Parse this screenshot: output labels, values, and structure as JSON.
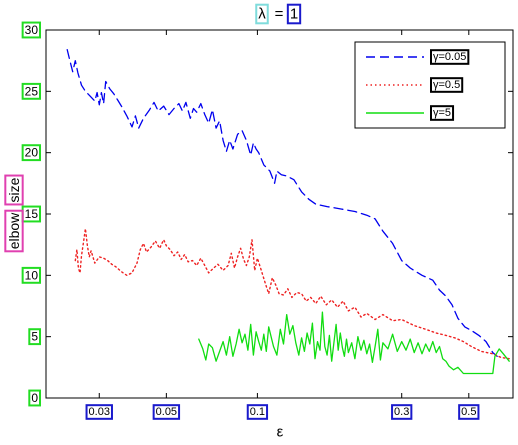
{
  "chart_data": {
    "type": "line",
    "title": "λ = 1",
    "title_parts": [
      "λ",
      "=",
      "1"
    ],
    "xlabel": "ε",
    "ylabel": "elbow size",
    "ylabel_parts": [
      "elbow",
      "size"
    ],
    "x_scale": "log",
    "xlim": [
      0.02,
      0.7
    ],
    "ylim": [
      0,
      30
    ],
    "x_ticks": [
      {
        "value": 0.03,
        "label": "0.03"
      },
      {
        "value": 0.05,
        "label": "0.05"
      },
      {
        "value": 0.1,
        "label": "0.1"
      },
      {
        "value": 0.3,
        "label": "0.3"
      },
      {
        "value": 0.5,
        "label": "0.5"
      }
    ],
    "y_ticks": [
      {
        "value": 0,
        "label": "0"
      },
      {
        "value": 5,
        "label": "5"
      },
      {
        "value": 10,
        "label": "10"
      },
      {
        "value": 15,
        "label": "15"
      },
      {
        "value": 20,
        "label": "20"
      },
      {
        "value": 25,
        "label": "25"
      },
      {
        "value": 30,
        "label": "30"
      }
    ],
    "grid": false,
    "legend_position": "top-right",
    "label_box_colors": {
      "title_box": "#7fdcdc",
      "tick_box": "#1a1acc",
      "ylabel_box": "#e040b0",
      "ytick_box": "#22dd22",
      "legend_label_box": "#000000"
    },
    "series": [
      {
        "name": "γ=0.05",
        "color": "#0000ee",
        "dash": "dashed",
        "points": [
          [
            0.0235,
            28.4
          ],
          [
            0.024,
            27.5
          ],
          [
            0.0245,
            26.6
          ],
          [
            0.025,
            27.5
          ],
          [
            0.0255,
            26.5
          ],
          [
            0.0262,
            25.5
          ],
          [
            0.027,
            25.0
          ],
          [
            0.028,
            24.6
          ],
          [
            0.029,
            24.2
          ],
          [
            0.0295,
            24.9
          ],
          [
            0.03,
            23.9
          ],
          [
            0.0305,
            24.9
          ],
          [
            0.031,
            24.0
          ],
          [
            0.0315,
            25.8
          ],
          [
            0.0325,
            25.2
          ],
          [
            0.0335,
            24.8
          ],
          [
            0.0345,
            24.3
          ],
          [
            0.0355,
            23.8
          ],
          [
            0.037,
            23.0
          ],
          [
            0.0385,
            22.1
          ],
          [
            0.0395,
            23.0
          ],
          [
            0.0405,
            22.0
          ],
          [
            0.042,
            22.8
          ],
          [
            0.044,
            23.5
          ],
          [
            0.0455,
            24.1
          ],
          [
            0.047,
            23.4
          ],
          [
            0.049,
            23.8
          ],
          [
            0.051,
            23.1
          ],
          [
            0.053,
            23.6
          ],
          [
            0.055,
            24.0
          ],
          [
            0.0565,
            23.4
          ],
          [
            0.058,
            24.1
          ],
          [
            0.06,
            22.8
          ],
          [
            0.0615,
            23.6
          ],
          [
            0.063,
            23.3
          ],
          [
            0.065,
            24.0
          ],
          [
            0.067,
            23.1
          ],
          [
            0.069,
            22.4
          ],
          [
            0.071,
            23.5
          ],
          [
            0.073,
            22.0
          ],
          [
            0.075,
            22.6
          ],
          [
            0.077,
            21.0
          ],
          [
            0.079,
            20.1
          ],
          [
            0.081,
            21.0
          ],
          [
            0.083,
            20.3
          ],
          [
            0.086,
            21.5
          ],
          [
            0.089,
            21.8
          ],
          [
            0.092,
            21.0
          ],
          [
            0.095,
            19.8
          ],
          [
            0.097,
            20.8
          ],
          [
            0.099,
            20.3
          ],
          [
            0.101,
            20.0
          ],
          [
            0.105,
            19.0
          ],
          [
            0.11,
            18.5
          ],
          [
            0.114,
            17.5
          ],
          [
            0.116,
            18.5
          ],
          [
            0.12,
            18.2
          ],
          [
            0.125,
            18.1
          ],
          [
            0.132,
            17.8
          ],
          [
            0.14,
            16.8
          ],
          [
            0.148,
            16.2
          ],
          [
            0.156,
            15.8
          ],
          [
            0.17,
            15.6
          ],
          [
            0.19,
            15.4
          ],
          [
            0.21,
            15.2
          ],
          [
            0.23,
            14.9
          ],
          [
            0.245,
            14.6
          ],
          [
            0.26,
            13.6
          ],
          [
            0.28,
            12.6
          ],
          [
            0.3,
            11.2
          ],
          [
            0.32,
            10.6
          ],
          [
            0.35,
            10.0
          ],
          [
            0.38,
            9.6
          ],
          [
            0.4,
            8.8
          ],
          [
            0.42,
            8.3
          ],
          [
            0.44,
            7.6
          ],
          [
            0.46,
            6.5
          ],
          [
            0.485,
            5.8
          ],
          [
            0.51,
            5.5
          ],
          [
            0.54,
            5.1
          ],
          [
            0.57,
            4.6
          ],
          [
            0.6,
            3.7
          ],
          [
            0.62,
            3.4
          ]
        ]
      },
      {
        "name": "γ=0.5",
        "color": "#ee2222",
        "dash": "dotted",
        "points": [
          [
            0.025,
            11.2
          ],
          [
            0.0253,
            12.1
          ],
          [
            0.0256,
            10.6
          ],
          [
            0.0259,
            10.2
          ],
          [
            0.0262,
            11.6
          ],
          [
            0.0266,
            12.7
          ],
          [
            0.027,
            13.8
          ],
          [
            0.0274,
            12.4
          ],
          [
            0.0278,
            11.5
          ],
          [
            0.0282,
            12.0
          ],
          [
            0.029,
            11.0
          ],
          [
            0.03,
            11.5
          ],
          [
            0.031,
            11.4
          ],
          [
            0.032,
            11.2
          ],
          [
            0.033,
            10.9
          ],
          [
            0.034,
            10.7
          ],
          [
            0.0355,
            10.3
          ],
          [
            0.037,
            10.0
          ],
          [
            0.0385,
            10.2
          ],
          [
            0.04,
            11.0
          ],
          [
            0.041,
            12.1
          ],
          [
            0.042,
            12.6
          ],
          [
            0.043,
            11.9
          ],
          [
            0.0445,
            12.3
          ],
          [
            0.046,
            12.8
          ],
          [
            0.0475,
            12.2
          ],
          [
            0.049,
            12.9
          ],
          [
            0.05,
            12.4
          ],
          [
            0.0515,
            12.1
          ],
          [
            0.053,
            11.6
          ],
          [
            0.0545,
            11.9
          ],
          [
            0.056,
            11.3
          ],
          [
            0.0575,
            11.7
          ],
          [
            0.059,
            11.1
          ],
          [
            0.061,
            11.2
          ],
          [
            0.063,
            10.8
          ],
          [
            0.065,
            11.4
          ],
          [
            0.067,
            10.8
          ],
          [
            0.069,
            10.2
          ],
          [
            0.071,
            10.5
          ],
          [
            0.074,
            10.9
          ],
          [
            0.077,
            10.4
          ],
          [
            0.08,
            10.8
          ],
          [
            0.082,
            11.8
          ],
          [
            0.084,
            10.6
          ],
          [
            0.086,
            11.5
          ],
          [
            0.088,
            12.2
          ],
          [
            0.09,
            11.3
          ],
          [
            0.092,
            10.8
          ],
          [
            0.094,
            11.5
          ],
          [
            0.096,
            12.9
          ],
          [
            0.098,
            10.4
          ],
          [
            0.1,
            11.4
          ],
          [
            0.103,
            10.4
          ],
          [
            0.106,
            9.4
          ],
          [
            0.109,
            8.5
          ],
          [
            0.112,
            9.8
          ],
          [
            0.115,
            9.2
          ],
          [
            0.118,
            8.5
          ],
          [
            0.122,
            8.4
          ],
          [
            0.126,
            8.9
          ],
          [
            0.13,
            8.2
          ],
          [
            0.135,
            8.6
          ],
          [
            0.14,
            8.5
          ],
          [
            0.145,
            7.9
          ],
          [
            0.15,
            8.2
          ],
          [
            0.156,
            7.7
          ],
          [
            0.162,
            8.3
          ],
          [
            0.169,
            7.6
          ],
          [
            0.176,
            8.0
          ],
          [
            0.184,
            7.4
          ],
          [
            0.192,
            7.9
          ],
          [
            0.2,
            7.1
          ],
          [
            0.21,
            7.4
          ],
          [
            0.22,
            6.6
          ],
          [
            0.23,
            6.9
          ],
          [
            0.245,
            6.4
          ],
          [
            0.26,
            6.8
          ],
          [
            0.28,
            6.3
          ],
          [
            0.3,
            6.4
          ],
          [
            0.33,
            5.9
          ],
          [
            0.36,
            5.6
          ],
          [
            0.39,
            5.3
          ],
          [
            0.42,
            5.1
          ],
          [
            0.45,
            4.9
          ],
          [
            0.48,
            4.6
          ],
          [
            0.51,
            4.2
          ],
          [
            0.55,
            3.8
          ],
          [
            0.6,
            3.6
          ],
          [
            0.64,
            3.3
          ],
          [
            0.68,
            3.2
          ]
        ]
      },
      {
        "name": "γ=5",
        "color": "#11dd11",
        "dash": "solid",
        "points": [
          [
            0.064,
            4.8
          ],
          [
            0.066,
            4.0
          ],
          [
            0.0675,
            3.1
          ],
          [
            0.069,
            4.4
          ],
          [
            0.071,
            4.1
          ],
          [
            0.073,
            3.0
          ],
          [
            0.075,
            3.8
          ],
          [
            0.077,
            4.6
          ],
          [
            0.079,
            3.5
          ],
          [
            0.081,
            5.0
          ],
          [
            0.083,
            3.4
          ],
          [
            0.085,
            4.4
          ],
          [
            0.087,
            5.6
          ],
          [
            0.089,
            4.5
          ],
          [
            0.091,
            5.2
          ],
          [
            0.093,
            3.9
          ],
          [
            0.095,
            6.0
          ],
          [
            0.097,
            3.5
          ],
          [
            0.099,
            5.4
          ],
          [
            0.101,
            4.6
          ],
          [
            0.103,
            3.9
          ],
          [
            0.105,
            5.2
          ],
          [
            0.107,
            3.8
          ],
          [
            0.109,
            5.8
          ],
          [
            0.111,
            5.0
          ],
          [
            0.113,
            4.2
          ],
          [
            0.116,
            3.5
          ],
          [
            0.119,
            5.6
          ],
          [
            0.122,
            4.4
          ],
          [
            0.125,
            6.8
          ],
          [
            0.128,
            5.2
          ],
          [
            0.131,
            5.9
          ],
          [
            0.134,
            4.5
          ],
          [
            0.137,
            3.5
          ],
          [
            0.14,
            4.9
          ],
          [
            0.143,
            3.8
          ],
          [
            0.146,
            5.3
          ],
          [
            0.149,
            4.4
          ],
          [
            0.152,
            6.1
          ],
          [
            0.155,
            3.2
          ],
          [
            0.158,
            4.6
          ],
          [
            0.161,
            3.9
          ],
          [
            0.164,
            7.0
          ],
          [
            0.167,
            4.2
          ],
          [
            0.17,
            3.5
          ],
          [
            0.173,
            5.1
          ],
          [
            0.176,
            3.0
          ],
          [
            0.179,
            4.5
          ],
          [
            0.182,
            6.0
          ],
          [
            0.185,
            3.9
          ],
          [
            0.188,
            5.3
          ],
          [
            0.191,
            4.1
          ],
          [
            0.194,
            3.4
          ],
          [
            0.197,
            4.8
          ],
          [
            0.2,
            3.7
          ],
          [
            0.205,
            4.5
          ],
          [
            0.21,
            3.2
          ],
          [
            0.215,
            5.0
          ],
          [
            0.22,
            3.9
          ],
          [
            0.225,
            4.7
          ],
          [
            0.23,
            3.6
          ],
          [
            0.235,
            4.4
          ],
          [
            0.24,
            2.9
          ],
          [
            0.245,
            4.2
          ],
          [
            0.25,
            5.6
          ],
          [
            0.255,
            3.1
          ],
          [
            0.26,
            4.5
          ],
          [
            0.27,
            4.0
          ],
          [
            0.28,
            5.2
          ],
          [
            0.29,
            3.8
          ],
          [
            0.3,
            4.6
          ],
          [
            0.31,
            3.9
          ],
          [
            0.32,
            4.8
          ],
          [
            0.33,
            3.7
          ],
          [
            0.34,
            4.5
          ],
          [
            0.35,
            3.6
          ],
          [
            0.36,
            4.4
          ],
          [
            0.37,
            3.8
          ],
          [
            0.38,
            4.6
          ],
          [
            0.39,
            3.7
          ],
          [
            0.4,
            4.2
          ],
          [
            0.41,
            3.2
          ],
          [
            0.42,
            3.0
          ],
          [
            0.43,
            2.6
          ],
          [
            0.445,
            2.3
          ],
          [
            0.46,
            2.5
          ],
          [
            0.48,
            2.0
          ],
          [
            0.52,
            2.0
          ],
          [
            0.56,
            2.0
          ],
          [
            0.6,
            2.0
          ],
          [
            0.61,
            3.4
          ],
          [
            0.63,
            4.0
          ],
          [
            0.65,
            3.6
          ],
          [
            0.68,
            3.0
          ]
        ]
      }
    ]
  }
}
